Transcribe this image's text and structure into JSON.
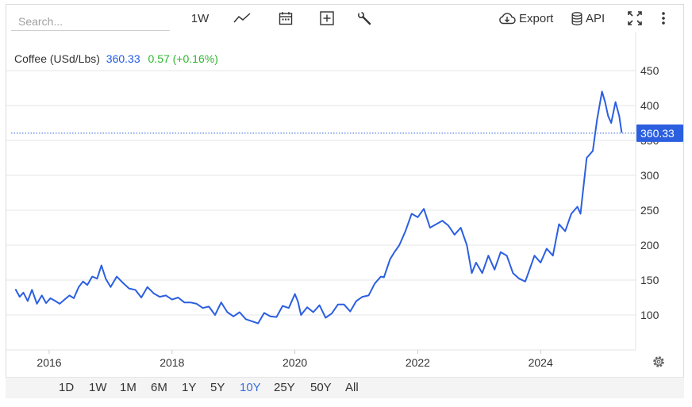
{
  "toolbar": {
    "search_placeholder": "Search...",
    "interval_label": "1W",
    "export_label": "Export",
    "api_label": "API",
    "icons": [
      "line-chart-icon",
      "calendar-icon",
      "add-icon",
      "wrench-icon",
      "cloud-download-icon",
      "database-icon",
      "fullscreen-icon",
      "more-vertical-icon"
    ]
  },
  "legend": {
    "symbol": "Coffee (USd/Lbs)",
    "price": "360.33",
    "change": "0.57 (+0.16%)"
  },
  "ranges": {
    "items": [
      "1D",
      "1W",
      "1M",
      "6M",
      "1Y",
      "5Y",
      "10Y",
      "25Y",
      "50Y",
      "All"
    ],
    "active": "10Y"
  },
  "chart_data": {
    "type": "line",
    "title": "",
    "xlabel": "",
    "ylabel": "",
    "x_ticks": [
      "2016",
      "2018",
      "2020",
      "2022",
      "2024"
    ],
    "y_ticks": [
      100,
      150,
      200,
      250,
      300,
      350,
      400,
      450
    ],
    "ylim": [
      50,
      470
    ],
    "xlim": [
      2015.4,
      2025.5
    ],
    "grid": true,
    "legend": "top-left",
    "last_value_label": "360.33",
    "colors": {
      "line": "#2b5fe0",
      "last_value_bg": "#2b5fe0"
    },
    "series": [
      {
        "values": [
          [
            2015.45,
            137
          ],
          [
            2015.52,
            126
          ],
          [
            2015.58,
            132
          ],
          [
            2015.65,
            120
          ],
          [
            2015.72,
            136
          ],
          [
            2015.8,
            116
          ],
          [
            2015.88,
            128
          ],
          [
            2015.95,
            117
          ],
          [
            2016.02,
            124
          ],
          [
            2016.1,
            120
          ],
          [
            2016.17,
            116
          ],
          [
            2016.25,
            122
          ],
          [
            2016.33,
            128
          ],
          [
            2016.4,
            124
          ],
          [
            2016.48,
            140
          ],
          [
            2016.55,
            148
          ],
          [
            2016.62,
            143
          ],
          [
            2016.7,
            155
          ],
          [
            2016.78,
            152
          ],
          [
            2016.85,
            171
          ],
          [
            2016.92,
            152
          ],
          [
            2017.0,
            140
          ],
          [
            2017.1,
            155
          ],
          [
            2017.2,
            146
          ],
          [
            2017.3,
            138
          ],
          [
            2017.4,
            136
          ],
          [
            2017.5,
            125
          ],
          [
            2017.6,
            140
          ],
          [
            2017.7,
            131
          ],
          [
            2017.8,
            126
          ],
          [
            2017.9,
            128
          ],
          [
            2018.0,
            122
          ],
          [
            2018.1,
            125
          ],
          [
            2018.2,
            118
          ],
          [
            2018.3,
            118
          ],
          [
            2018.4,
            116
          ],
          [
            2018.5,
            110
          ],
          [
            2018.6,
            112
          ],
          [
            2018.7,
            100
          ],
          [
            2018.8,
            118
          ],
          [
            2018.9,
            104
          ],
          [
            2019.0,
            98
          ],
          [
            2019.1,
            104
          ],
          [
            2019.2,
            94
          ],
          [
            2019.3,
            91
          ],
          [
            2019.4,
            88
          ],
          [
            2019.5,
            103
          ],
          [
            2019.6,
            98
          ],
          [
            2019.7,
            97
          ],
          [
            2019.8,
            113
          ],
          [
            2019.9,
            110
          ],
          [
            2020.0,
            130
          ],
          [
            2020.05,
            119
          ],
          [
            2020.1,
            100
          ],
          [
            2020.2,
            111
          ],
          [
            2020.3,
            104
          ],
          [
            2020.4,
            114
          ],
          [
            2020.5,
            96
          ],
          [
            2020.6,
            102
          ],
          [
            2020.7,
            115
          ],
          [
            2020.8,
            115
          ],
          [
            2020.9,
            105
          ],
          [
            2021.0,
            120
          ],
          [
            2021.1,
            126
          ],
          [
            2021.2,
            128
          ],
          [
            2021.3,
            145
          ],
          [
            2021.4,
            155
          ],
          [
            2021.45,
            154
          ],
          [
            2021.55,
            180
          ],
          [
            2021.62,
            190
          ],
          [
            2021.7,
            200
          ],
          [
            2021.8,
            220
          ],
          [
            2021.9,
            245
          ],
          [
            2022.0,
            240
          ],
          [
            2022.1,
            252
          ],
          [
            2022.2,
            225
          ],
          [
            2022.3,
            230
          ],
          [
            2022.4,
            235
          ],
          [
            2022.5,
            228
          ],
          [
            2022.6,
            215
          ],
          [
            2022.7,
            225
          ],
          [
            2022.8,
            200
          ],
          [
            2022.88,
            160
          ],
          [
            2022.95,
            175
          ],
          [
            2023.05,
            160
          ],
          [
            2023.15,
            185
          ],
          [
            2023.25,
            165
          ],
          [
            2023.35,
            190
          ],
          [
            2023.45,
            185
          ],
          [
            2023.55,
            160
          ],
          [
            2023.65,
            152
          ],
          [
            2023.75,
            148
          ],
          [
            2023.82,
            165
          ],
          [
            2023.9,
            185
          ],
          [
            2024.0,
            175
          ],
          [
            2024.1,
            195
          ],
          [
            2024.2,
            185
          ],
          [
            2024.3,
            230
          ],
          [
            2024.4,
            220
          ],
          [
            2024.5,
            245
          ],
          [
            2024.6,
            255
          ],
          [
            2024.65,
            245
          ],
          [
            2024.75,
            325
          ],
          [
            2024.85,
            335
          ],
          [
            2024.92,
            380
          ],
          [
            2025.0,
            420
          ],
          [
            2025.05,
            405
          ],
          [
            2025.1,
            385
          ],
          [
            2025.15,
            375
          ],
          [
            2025.22,
            405
          ],
          [
            2025.28,
            385
          ],
          [
            2025.32,
            361
          ]
        ]
      }
    ]
  }
}
